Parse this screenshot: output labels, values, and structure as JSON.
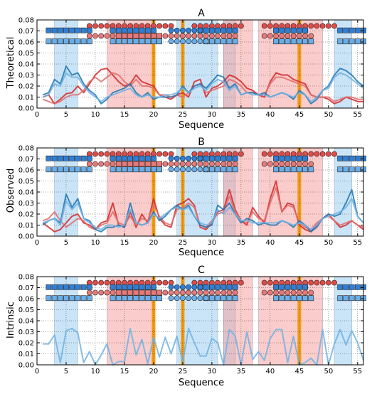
{
  "chart_data": [
    {
      "type": "line",
      "title": "A",
      "xlabel": "Sequence",
      "ylabel": "Theoretical",
      "xlim": [
        0,
        56
      ],
      "ylim": [
        0,
        0.08
      ],
      "xticks": [
        "0",
        "5",
        "10",
        "15",
        "20",
        "25",
        "30",
        "35",
        "40",
        "45",
        "50",
        "55"
      ],
      "yticks": [
        "0.00",
        "0.01",
        "0.02",
        "0.03",
        "0.04",
        "0.05",
        "0.06",
        "0.07",
        "0.08"
      ],
      "grid": true,
      "x": [
        1,
        2,
        3,
        4,
        5,
        6,
        7,
        8,
        9,
        10,
        11,
        12,
        13,
        14,
        15,
        16,
        17,
        18,
        19,
        20,
        21,
        22,
        23,
        24,
        25,
        26,
        27,
        28,
        29,
        30,
        31,
        32,
        33,
        34,
        35,
        36,
        37,
        38,
        39,
        40,
        41,
        42,
        43,
        44,
        45,
        46,
        47,
        48,
        49,
        50,
        51,
        52,
        53,
        54,
        55,
        56
      ],
      "series": [
        {
          "color": "#d62728",
          "values": [
            0.01,
            0.012,
            0.004,
            0.008,
            0.013,
            0.014,
            0.02,
            0.014,
            0.022,
            0.03,
            0.035,
            0.036,
            0.03,
            0.024,
            0.02,
            0.022,
            0.03,
            0.024,
            0.022,
            0.02,
            0.012,
            0.01,
            0.008,
            0.012,
            0.014,
            0.01,
            0.024,
            0.026,
            0.01,
            0.018,
            0.02,
            0.024,
            0.03,
            0.028,
            0.024,
            0.018,
            0.016,
            0.012,
            0.01,
            0.024,
            0.032,
            0.03,
            0.03,
            0.026,
            0.024,
            0.022,
            0.012,
            0.01,
            0.01,
            0.008,
            0.004,
            0.006,
            0.01,
            0.008,
            0.006,
            0.006
          ]
        },
        {
          "color": "#e06c6c",
          "values": [
            0.008,
            0.006,
            0.004,
            0.006,
            0.01,
            0.012,
            0.012,
            0.016,
            0.024,
            0.028,
            0.024,
            0.028,
            0.032,
            0.03,
            0.024,
            0.02,
            0.026,
            0.02,
            0.02,
            0.018,
            0.012,
            0.012,
            0.01,
            0.012,
            0.01,
            0.014,
            0.02,
            0.022,
            0.014,
            0.016,
            0.018,
            0.02,
            0.026,
            0.024,
            0.02,
            0.014,
            0.014,
            0.012,
            0.012,
            0.022,
            0.028,
            0.028,
            0.026,
            0.024,
            0.022,
            0.02,
            0.012,
            0.01,
            0.01,
            0.01,
            0.006,
            0.008,
            0.01,
            0.01,
            0.008,
            0.008
          ]
        },
        {
          "color": "#1f77b4",
          "values": [
            0.012,
            0.014,
            0.026,
            0.022,
            0.038,
            0.03,
            0.032,
            0.022,
            0.016,
            0.012,
            0.004,
            0.008,
            0.014,
            0.016,
            0.018,
            0.022,
            0.014,
            0.01,
            0.014,
            0.008,
            0.01,
            0.01,
            0.01,
            0.012,
            0.02,
            0.014,
            0.02,
            0.022,
            0.018,
            0.024,
            0.03,
            0.028,
            0.018,
            0.022,
            0.012,
            0.014,
            0.014,
            0.012,
            0.014,
            0.01,
            0.012,
            0.014,
            0.012,
            0.008,
            0.016,
            0.012,
            0.004,
            0.008,
            0.016,
            0.02,
            0.03,
            0.036,
            0.034,
            0.03,
            0.024,
            0.02
          ]
        },
        {
          "color": "#6fb1e4",
          "values": [
            0.01,
            0.012,
            0.022,
            0.02,
            0.032,
            0.028,
            0.028,
            0.02,
            0.014,
            0.01,
            0.006,
            0.01,
            0.012,
            0.014,
            0.016,
            0.018,
            0.012,
            0.01,
            0.012,
            0.01,
            0.01,
            0.012,
            0.012,
            0.014,
            0.018,
            0.014,
            0.018,
            0.02,
            0.016,
            0.022,
            0.026,
            0.024,
            0.016,
            0.02,
            0.012,
            0.014,
            0.012,
            0.012,
            0.012,
            0.01,
            0.012,
            0.014,
            0.012,
            0.01,
            0.014,
            0.012,
            0.006,
            0.01,
            0.016,
            0.018,
            0.028,
            0.032,
            0.03,
            0.026,
            0.022,
            0.018
          ]
        }
      ]
    },
    {
      "type": "line",
      "title": "B",
      "xlabel": "Sequence",
      "ylabel": "Observed",
      "xlim": [
        0,
        56
      ],
      "ylim": [
        0,
        0.08
      ],
      "xticks": [
        "0",
        "5",
        "10",
        "15",
        "20",
        "25",
        "30",
        "35",
        "40",
        "45",
        "50",
        "55"
      ],
      "yticks": [
        "0.00",
        "0.01",
        "0.02",
        "0.03",
        "0.04",
        "0.05",
        "0.06",
        "0.07",
        "0.08"
      ],
      "grid": true,
      "x": [
        1,
        2,
        3,
        4,
        5,
        6,
        7,
        8,
        9,
        10,
        11,
        12,
        13,
        14,
        15,
        16,
        17,
        18,
        19,
        20,
        21,
        22,
        23,
        24,
        25,
        26,
        27,
        28,
        29,
        30,
        31,
        32,
        33,
        34,
        35,
        36,
        37,
        38,
        39,
        40,
        41,
        42,
        43,
        44,
        45,
        46,
        47,
        48,
        49,
        50,
        51,
        52,
        53,
        54,
        55,
        56
      ],
      "series": [
        {
          "color": "#d62728",
          "values": [
            0.012,
            0.008,
            0.004,
            0.006,
            0.012,
            0.018,
            0.02,
            0.012,
            0.01,
            0.006,
            0.012,
            0.014,
            0.03,
            0.01,
            0.008,
            0.022,
            0.008,
            0.02,
            0.012,
            0.034,
            0.016,
            0.01,
            0.008,
            0.028,
            0.03,
            0.034,
            0.028,
            0.008,
            0.006,
            0.012,
            0.022,
            0.024,
            0.042,
            0.024,
            0.014,
            0.01,
            0.026,
            0.018,
            0.012,
            0.034,
            0.05,
            0.022,
            0.03,
            0.028,
            0.01,
            0.006,
            0.004,
            0.01,
            0.016,
            0.02,
            0.014,
            0.008,
            0.01,
            0.014,
            0.01,
            0.006
          ]
        },
        {
          "color": "#e06c6c",
          "values": [
            0.014,
            0.016,
            0.022,
            0.014,
            0.008,
            0.012,
            0.016,
            0.014,
            0.008,
            0.006,
            0.01,
            0.012,
            0.022,
            0.012,
            0.01,
            0.018,
            0.01,
            0.016,
            0.014,
            0.028,
            0.018,
            0.012,
            0.01,
            0.024,
            0.026,
            0.03,
            0.026,
            0.01,
            0.008,
            0.014,
            0.02,
            0.022,
            0.036,
            0.022,
            0.014,
            0.012,
            0.022,
            0.016,
            0.014,
            0.03,
            0.044,
            0.022,
            0.028,
            0.026,
            0.012,
            0.008,
            0.006,
            0.012,
            0.016,
            0.018,
            0.014,
            0.01,
            0.012,
            0.014,
            0.01,
            0.008
          ]
        },
        {
          "color": "#1f77b4",
          "values": [
            0.01,
            0.014,
            0.016,
            0.012,
            0.038,
            0.026,
            0.034,
            0.016,
            0.014,
            0.006,
            0.004,
            0.008,
            0.008,
            0.01,
            0.008,
            0.03,
            0.012,
            0.01,
            0.012,
            0.022,
            0.014,
            0.018,
            0.024,
            0.028,
            0.024,
            0.028,
            0.018,
            0.01,
            0.008,
            0.01,
            0.028,
            0.024,
            0.03,
            0.02,
            0.012,
            0.016,
            0.014,
            0.01,
            0.012,
            0.01,
            0.01,
            0.014,
            0.012,
            0.008,
            0.014,
            0.01,
            0.004,
            0.008,
            0.016,
            0.02,
            0.018,
            0.02,
            0.03,
            0.042,
            0.018,
            0.012
          ]
        },
        {
          "color": "#6fb1e4",
          "values": [
            0.012,
            0.014,
            0.016,
            0.01,
            0.032,
            0.024,
            0.03,
            0.016,
            0.012,
            0.008,
            0.006,
            0.01,
            0.01,
            0.008,
            0.01,
            0.024,
            0.012,
            0.01,
            0.012,
            0.02,
            0.016,
            0.02,
            0.024,
            0.026,
            0.024,
            0.026,
            0.018,
            0.012,
            0.01,
            0.012,
            0.024,
            0.02,
            0.026,
            0.02,
            0.014,
            0.014,
            0.012,
            0.012,
            0.012,
            0.012,
            0.012,
            0.014,
            0.012,
            0.01,
            0.012,
            0.01,
            0.006,
            0.01,
            0.016,
            0.018,
            0.02,
            0.022,
            0.026,
            0.034,
            0.018,
            0.012
          ]
        }
      ]
    },
    {
      "type": "line",
      "title": "C",
      "xlabel": "Sequence",
      "ylabel": "Intrinsic",
      "xlim": [
        0,
        56
      ],
      "ylim": [
        0,
        0.08
      ],
      "xticks": [
        "0",
        "5",
        "10",
        "15",
        "20",
        "25",
        "30",
        "35",
        "40",
        "45",
        "50",
        "55"
      ],
      "yticks": [
        "0.00",
        "0.01",
        "0.02",
        "0.03",
        "0.04",
        "0.05",
        "0.06",
        "0.07",
        "0.08"
      ],
      "grid": true,
      "x": [
        1,
        2,
        3,
        4,
        5,
        6,
        7,
        8,
        9,
        10,
        11,
        12,
        13,
        14,
        15,
        16,
        17,
        18,
        19,
        20,
        21,
        22,
        23,
        24,
        25,
        26,
        27,
        28,
        29,
        30,
        31,
        32,
        33,
        34,
        35,
        36,
        37,
        38,
        39,
        40,
        41,
        42,
        43,
        44,
        45,
        46,
        47,
        48,
        49,
        50,
        51,
        52,
        53,
        54,
        55,
        56
      ],
      "series": [
        {
          "color": "#6fb1e4",
          "values": [
            0.019,
            0.019,
            0.027,
            0.002,
            0.031,
            0.033,
            0.029,
            0.002,
            0.012,
            0.0,
            0.009,
            0.019,
            0.0,
            0.003,
            0.003,
            0.033,
            0.009,
            0.023,
            0.001,
            0.025,
            0.007,
            0.025,
            0.01,
            0.026,
            0.002,
            0.033,
            0.02,
            0.008,
            0.008,
            0.024,
            0.02,
            0.0,
            0.032,
            0.026,
            0.0,
            0.03,
            0.005,
            0.012,
            0.004,
            0.024,
            0.032,
            0.032,
            0.002,
            0.026,
            0.0,
            0.002,
            0.006,
            0.0,
            0.032,
            0.0,
            0.019,
            0.032,
            0.018,
            0.031,
            0.02,
            0.004
          ]
        }
      ]
    }
  ],
  "bands": {
    "blue": [
      [
        3,
        7
      ],
      [
        24,
        31
      ],
      [
        32,
        34
      ],
      [
        51,
        54
      ]
    ],
    "red": [
      [
        12,
        20
      ],
      [
        32,
        37
      ],
      [
        38,
        49
      ]
    ],
    "orange": [
      20,
      25,
      45
    ]
  },
  "markers": {
    "rows": [
      {
        "y": 0.0745,
        "shape": "circle",
        "color": "#e04a48",
        "segments": [
          [
            9,
            23
          ],
          [
            27,
            35
          ],
          [
            39,
            51
          ]
        ]
      },
      {
        "y": 0.0705,
        "shape": "square",
        "color": "#2f7fd6",
        "segments": [
          [
            2,
            9
          ],
          [
            13,
            20
          ],
          [
            28,
            34
          ],
          [
            41,
            46
          ],
          [
            52,
            56
          ]
        ]
      },
      {
        "y": 0.0705,
        "shape": "circle",
        "color": "#2f7fd6",
        "segments": [
          [
            23,
            28
          ]
        ]
      },
      {
        "y": 0.0655,
        "shape": "circle",
        "color": "#e8797a",
        "segments": [
          [
            9,
            13
          ],
          [
            22,
            34
          ],
          [
            39,
            47
          ]
        ]
      },
      {
        "y": 0.0655,
        "shape": "square",
        "color": "#e8797a",
        "segments": [
          [
            14,
            21
          ]
        ]
      },
      {
        "y": 0.0605,
        "shape": "square",
        "color": "#6aaee8",
        "segments": [
          [
            2,
            9
          ],
          [
            13,
            21
          ],
          [
            29,
            34
          ],
          [
            41,
            47
          ],
          [
            52,
            56
          ]
        ]
      },
      {
        "y": 0.0605,
        "shape": "circle",
        "color": "#6aaee8",
        "segments": [
          [
            23,
            29
          ]
        ]
      }
    ]
  }
}
